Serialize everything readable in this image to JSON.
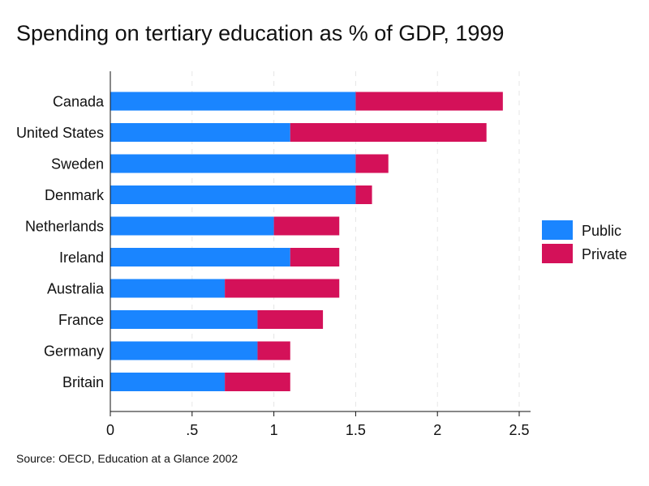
{
  "chart_data": {
    "type": "bar",
    "orientation": "horizontal",
    "stacked": true,
    "title": "Spending on tertiary education as % of GDP, 1999",
    "source": "Source: OECD, Education at a Glance 2002",
    "xlabel": "",
    "ylabel": "",
    "xlim": [
      0,
      2.5
    ],
    "x_ticks": [
      {
        "value": 0,
        "label": "0"
      },
      {
        "value": 0.5,
        "label": ".5"
      },
      {
        "value": 1,
        "label": "1"
      },
      {
        "value": 1.5,
        "label": "1.5"
      },
      {
        "value": 2,
        "label": "2"
      },
      {
        "value": 2.5,
        "label": "2.5"
      }
    ],
    "grid": "vertical dashed",
    "legend_position": "right",
    "categories": [
      "Canada",
      "United States",
      "Sweden",
      "Denmark",
      "Netherlands",
      "Ireland",
      "Australia",
      "France",
      "Germany",
      "Britain"
    ],
    "series": [
      {
        "name": "Public",
        "color": "#1a85ff",
        "values": [
          1.5,
          1.1,
          1.5,
          1.5,
          1.0,
          1.1,
          0.7,
          0.9,
          0.9,
          0.7
        ]
      },
      {
        "name": "Private",
        "color": "#d41159",
        "values": [
          0.9,
          1.2,
          0.2,
          0.1,
          0.4,
          0.3,
          0.7,
          0.4,
          0.2,
          0.4
        ]
      }
    ]
  }
}
